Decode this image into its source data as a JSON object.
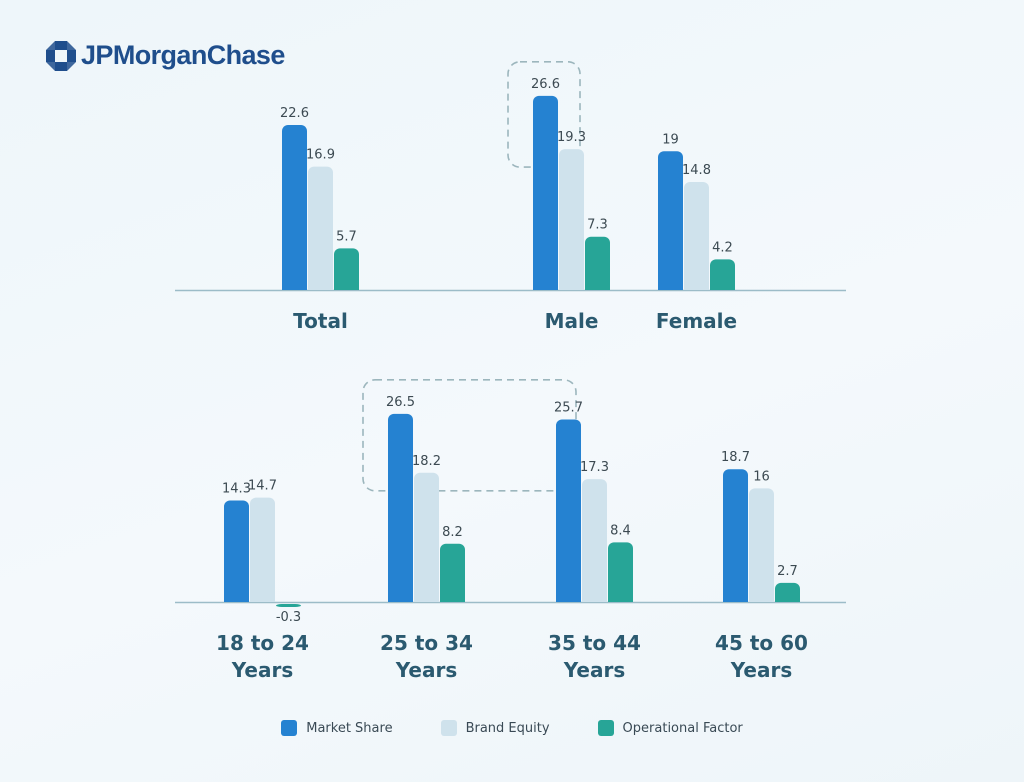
{
  "logo": {
    "text": "JPMorganChase",
    "icon": "octagon-logo-icon"
  },
  "colors": {
    "market_share": "#2582d1",
    "brand_equity": "#cfe2ec",
    "operational_factor": "#27a597",
    "axis": "#9cbcc8",
    "category_label": "#2b5a70",
    "value_label": "#3c4a52",
    "highlight_box": "#9cb6bd"
  },
  "chart_data": [
    {
      "type": "bar",
      "series": [
        {
          "name": "Market Share",
          "values": [
            22.6,
            26.6,
            19
          ]
        },
        {
          "name": "Brand Equity",
          "values": [
            16.9,
            19.3,
            14.8
          ]
        },
        {
          "name": "Operational Factor",
          "values": [
            5.7,
            7.3,
            4.2
          ]
        }
      ],
      "categories": [
        {
          "label": [
            "Total"
          ]
        },
        {
          "label": [
            "Male"
          ]
        },
        {
          "label": [
            "Female"
          ]
        }
      ],
      "highlighted_categories": [
        "Male"
      ]
    },
    {
      "type": "bar",
      "series": [
        {
          "name": "Market Share",
          "values": [
            14.3,
            26.5,
            25.7,
            18.7
          ]
        },
        {
          "name": "Brand Equity",
          "values": [
            14.7,
            18.2,
            17.3,
            16
          ]
        },
        {
          "name": "Operational Factor",
          "values": [
            -0.3,
            8.2,
            8.4,
            2.7
          ]
        }
      ],
      "categories": [
        {
          "label": [
            "18 to 24",
            "Years"
          ]
        },
        {
          "label": [
            "25 to 34",
            "Years"
          ]
        },
        {
          "label": [
            "35 to 44",
            "Years"
          ]
        },
        {
          "label": [
            "45 to 60",
            "Years"
          ]
        }
      ],
      "highlighted_categories": [
        "25 to 34",
        "35 to 44"
      ]
    }
  ],
  "legend": [
    {
      "label": "Market Share",
      "key": "market_share"
    },
    {
      "label": "Brand Equity",
      "key": "brand_equity"
    },
    {
      "label": "Operational Factor",
      "key": "operational_factor"
    }
  ]
}
